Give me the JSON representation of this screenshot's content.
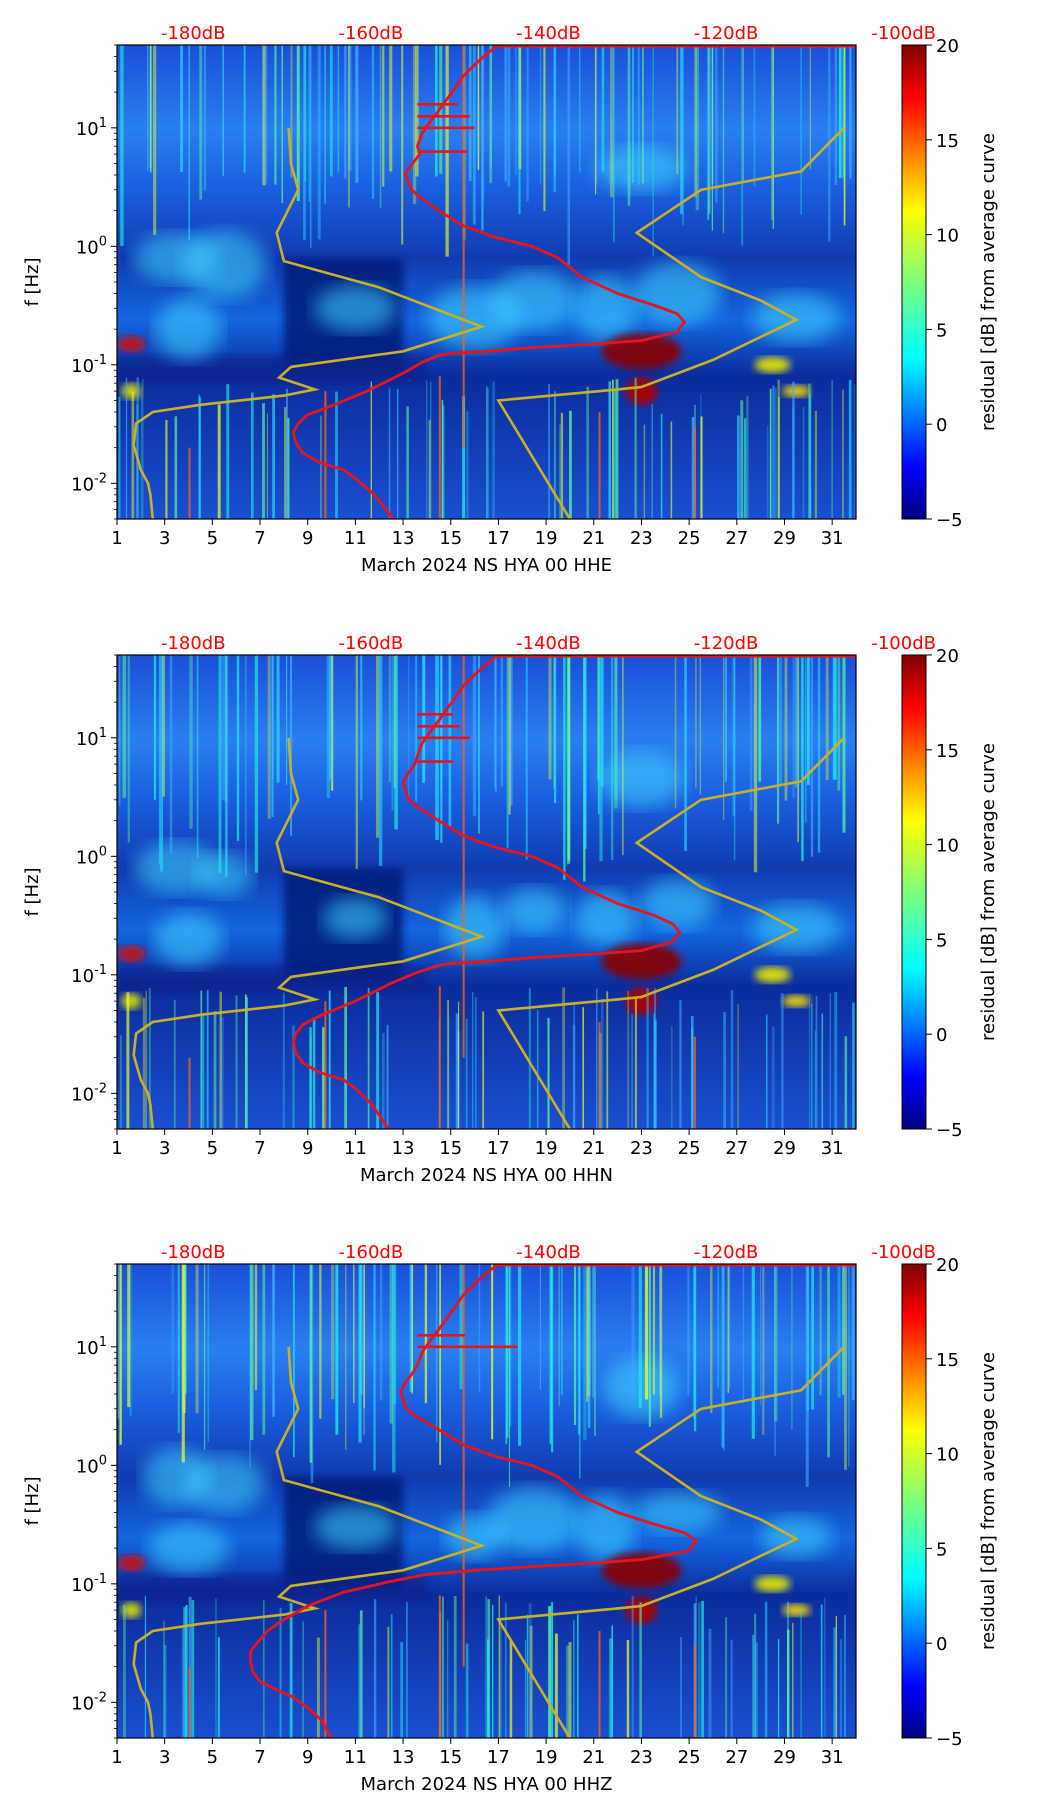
{
  "colors": {
    "curve": "#e8141c",
    "nlnm_nhnm": "#c8b028",
    "db_label": "#ff0000",
    "text": "#000000"
  },
  "chart_data": [
    {
      "type": "heatmap",
      "title": "",
      "xlabel": "March 2024 NS HYA 00 HHE",
      "ylabel": "f [Hz]",
      "xlim": [
        1,
        32
      ],
      "ylim": [
        0.005,
        50
      ],
      "x_ticks": [
        "1",
        "3",
        "5",
        "7",
        "9",
        "11",
        "13",
        "15",
        "17",
        "19",
        "21",
        "23",
        "25",
        "27",
        "29",
        "31"
      ],
      "y_ticks": [
        "10^-2",
        "10^-1",
        "10^0",
        "10^1"
      ],
      "top_db_labels": [
        "-180dB",
        "-160dB",
        "-140dB",
        "-120dB",
        "-100dB"
      ],
      "colorbar": {
        "label": "residual [dB] from average curve",
        "min": -5,
        "max": 20,
        "ticks": [
          "-5",
          "0",
          "5",
          "10",
          "15",
          "20"
        ]
      },
      "average_curve": {
        "x": [
          17.0,
          16.5,
          16.0,
          15.5,
          15.2,
          14.8,
          14.5,
          14.1,
          13.8,
          13.6,
          13.7,
          13.4,
          13.1,
          13.2,
          13.3,
          13.6,
          14.5,
          15.5,
          16.8,
          18.4,
          19.5,
          20.5,
          22.0,
          23.5,
          24.5,
          24.8,
          24.5,
          23.0,
          21.0,
          18.5,
          16.5,
          15.0,
          14.5,
          13.8,
          13.0,
          11.5,
          10.0,
          9.0,
          8.6,
          8.4,
          8.5,
          8.8,
          9.5,
          10.5,
          11.0,
          11.8,
          12.6
        ],
        "y": [
          50,
          42,
          34,
          27,
          22,
          17,
          14,
          11,
          9,
          7,
          6,
          5,
          4.2,
          3.6,
          3.1,
          2.7,
          2.0,
          1.5,
          1.2,
          1.0,
          0.8,
          0.55,
          0.4,
          0.32,
          0.27,
          0.23,
          0.19,
          0.16,
          0.15,
          0.14,
          0.13,
          0.125,
          0.12,
          0.105,
          0.085,
          0.06,
          0.045,
          0.038,
          0.032,
          0.027,
          0.022,
          0.018,
          0.015,
          0.013,
          0.011,
          0.008,
          0.005
        ],
        "spikes": [
          [
            15.7,
            6.3
          ],
          [
            16.0,
            10
          ],
          [
            15.8,
            12.5
          ],
          [
            15.3,
            15.8
          ]
        ]
      },
      "model_curves": {
        "low": {
          "x": [
            2.5,
            2.4,
            2.3,
            2.0,
            1.7,
            1.8,
            2.5,
            4.5,
            8.0,
            9.3,
            7.8,
            8.3,
            13.0,
            16.3,
            12.0,
            8.0,
            7.7,
            8.6,
            8.3,
            8.2
          ],
          "y": [
            0.005,
            0.008,
            0.01,
            0.013,
            0.021,
            0.032,
            0.04,
            0.046,
            0.055,
            0.062,
            0.078,
            0.096,
            0.13,
            0.21,
            0.45,
            0.75,
            1.3,
            3.0,
            5.0,
            10.0
          ]
        },
        "high": {
          "x": [
            20.0,
            17.0,
            22.0,
            23.0,
            26.0,
            29.5,
            28.0,
            25.5,
            22.8,
            25.5,
            29.7,
            31.5
          ],
          "y": [
            0.005,
            0.05,
            0.062,
            0.065,
            0.11,
            0.24,
            0.35,
            0.55,
            1.3,
            3.0,
            4.3,
            10.0
          ]
        }
      }
    },
    {
      "type": "heatmap",
      "title": "",
      "xlabel": "March 2024 NS HYA 00 HHN",
      "ylabel": "f [Hz]",
      "xlim": [
        1,
        32
      ],
      "ylim": [
        0.005,
        50
      ],
      "x_ticks": [
        "1",
        "3",
        "5",
        "7",
        "9",
        "11",
        "13",
        "15",
        "17",
        "19",
        "21",
        "23",
        "25",
        "27",
        "29",
        "31"
      ],
      "y_ticks": [
        "10^-2",
        "10^-1",
        "10^0",
        "10^1"
      ],
      "top_db_labels": [
        "-180dB",
        "-160dB",
        "-140dB",
        "-120dB",
        "-100dB"
      ],
      "colorbar": {
        "label": "residual [dB] from average curve",
        "min": -5,
        "max": 20,
        "ticks": [
          "-5",
          "0",
          "5",
          "10",
          "15",
          "20"
        ]
      },
      "average_curve": {
        "x": [
          17.0,
          16.5,
          16.0,
          15.5,
          15.2,
          14.8,
          14.5,
          14.1,
          13.8,
          13.6,
          13.5,
          13.2,
          13.0,
          13.1,
          13.2,
          13.5,
          14.5,
          15.5,
          16.8,
          18.4,
          19.5,
          20.5,
          22.0,
          23.5,
          24.3,
          24.6,
          24.3,
          23.0,
          21.0,
          18.5,
          16.5,
          15.0,
          14.5,
          13.6,
          12.5,
          11.0,
          9.5,
          8.8,
          8.5,
          8.4,
          8.5,
          8.8,
          9.5,
          10.5,
          11.0,
          11.7,
          12.4
        ],
        "y": [
          50,
          42,
          34,
          27,
          22,
          17,
          14,
          11,
          9,
          7,
          6,
          5,
          4.2,
          3.6,
          3.1,
          2.7,
          2.0,
          1.5,
          1.2,
          1.0,
          0.8,
          0.55,
          0.4,
          0.32,
          0.27,
          0.23,
          0.19,
          0.16,
          0.15,
          0.14,
          0.13,
          0.125,
          0.12,
          0.105,
          0.085,
          0.06,
          0.045,
          0.038,
          0.032,
          0.027,
          0.022,
          0.018,
          0.015,
          0.013,
          0.011,
          0.008,
          0.005
        ],
        "spikes": [
          [
            15.1,
            6.3
          ],
          [
            15.8,
            10
          ],
          [
            15.4,
            12.5
          ],
          [
            15.1,
            15.8
          ]
        ]
      },
      "model_curves": {
        "low": {
          "x": [
            2.5,
            2.4,
            2.3,
            2.0,
            1.7,
            1.8,
            2.5,
            4.5,
            8.0,
            9.3,
            7.8,
            8.3,
            13.0,
            16.3,
            12.0,
            8.0,
            7.7,
            8.6,
            8.3,
            8.2
          ],
          "y": [
            0.005,
            0.008,
            0.01,
            0.013,
            0.021,
            0.032,
            0.04,
            0.046,
            0.055,
            0.062,
            0.078,
            0.096,
            0.13,
            0.21,
            0.45,
            0.75,
            1.3,
            3.0,
            5.0,
            10.0
          ]
        },
        "high": {
          "x": [
            20.0,
            17.0,
            22.0,
            23.0,
            26.0,
            29.5,
            28.0,
            25.5,
            22.8,
            25.5,
            29.7,
            31.5
          ],
          "y": [
            0.005,
            0.05,
            0.062,
            0.065,
            0.11,
            0.24,
            0.35,
            0.55,
            1.3,
            3.0,
            4.3,
            10.0
          ]
        }
      }
    },
    {
      "type": "heatmap",
      "title": "",
      "xlabel": "March 2024 NS HYA 00 HHZ",
      "ylabel": "f [Hz]",
      "xlim": [
        1,
        32
      ],
      "ylim": [
        0.005,
        50
      ],
      "x_ticks": [
        "1",
        "3",
        "5",
        "7",
        "9",
        "11",
        "13",
        "15",
        "17",
        "19",
        "21",
        "23",
        "25",
        "27",
        "29",
        "31"
      ],
      "y_ticks": [
        "10^-2",
        "10^-1",
        "10^0",
        "10^1"
      ],
      "top_db_labels": [
        "-180dB",
        "-160dB",
        "-140dB",
        "-120dB",
        "-100dB"
      ],
      "colorbar": {
        "label": "residual [dB] from average curve",
        "min": -5,
        "max": 20,
        "ticks": [
          "-5",
          "0",
          "5",
          "10",
          "15",
          "20"
        ]
      },
      "average_curve": {
        "x": [
          17.0,
          16.5,
          16.0,
          15.5,
          15.2,
          14.8,
          14.5,
          14.1,
          13.8,
          13.6,
          13.4,
          13.1,
          12.9,
          13.0,
          13.1,
          13.4,
          14.5,
          15.5,
          16.8,
          18.4,
          19.5,
          20.5,
          22.0,
          23.5,
          24.8,
          25.3,
          25.0,
          23.0,
          21.0,
          18.5,
          16.0,
          14.0,
          12.5,
          10.5,
          9.0,
          8.0,
          7.3,
          6.9,
          6.6,
          6.6,
          6.7,
          7.0,
          7.6,
          8.4,
          9.0,
          9.6,
          10.0
        ],
        "y": [
          50,
          42,
          34,
          27,
          22,
          17,
          14,
          11,
          9,
          7,
          6,
          5,
          4.2,
          3.6,
          3.1,
          2.7,
          2.0,
          1.5,
          1.2,
          1.0,
          0.8,
          0.55,
          0.4,
          0.32,
          0.27,
          0.23,
          0.19,
          0.16,
          0.15,
          0.14,
          0.13,
          0.12,
          0.105,
          0.085,
          0.065,
          0.05,
          0.04,
          0.032,
          0.027,
          0.022,
          0.018,
          0.015,
          0.013,
          0.011,
          0.009,
          0.007,
          0.005
        ],
        "spikes": [
          [
            15.6,
            12.5
          ],
          [
            17.8,
            10
          ]
        ]
      },
      "model_curves": {
        "low": {
          "x": [
            2.5,
            2.4,
            2.3,
            2.0,
            1.7,
            1.8,
            2.5,
            4.5,
            8.0,
            9.3,
            7.8,
            8.3,
            13.0,
            16.3,
            12.0,
            8.0,
            7.7,
            8.6,
            8.3,
            8.2
          ],
          "y": [
            0.005,
            0.008,
            0.01,
            0.013,
            0.021,
            0.032,
            0.04,
            0.046,
            0.055,
            0.062,
            0.078,
            0.096,
            0.13,
            0.21,
            0.45,
            0.75,
            1.3,
            3.0,
            5.0,
            10.0
          ]
        },
        "high": {
          "x": [
            20.0,
            17.0,
            22.0,
            23.0,
            26.0,
            29.5,
            28.0,
            25.5,
            22.8,
            25.5,
            29.7,
            31.5
          ],
          "y": [
            0.005,
            0.05,
            0.062,
            0.065,
            0.11,
            0.24,
            0.35,
            0.55,
            1.3,
            3.0,
            4.3,
            10.0
          ]
        }
      }
    }
  ]
}
